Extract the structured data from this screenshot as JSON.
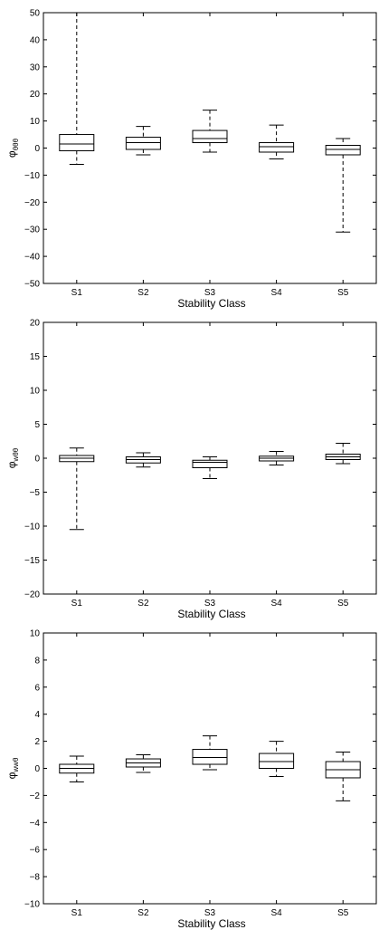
{
  "chart_data": [
    {
      "type": "boxplot",
      "xlabel": "Stability Class",
      "ylabel_base": "φ",
      "ylabel_sub": "θθθ",
      "ylim": [
        -50,
        50
      ],
      "yticks": [
        "-50",
        "-40",
        "-30",
        "-20",
        "-10",
        "0",
        "10",
        "20",
        "30",
        "40",
        "50"
      ],
      "categories": [
        "S1",
        "S2",
        "S3",
        "S4",
        "S5"
      ],
      "boxes": [
        {
          "whisker_low": -6,
          "q1": -1,
          "median": 1.5,
          "q3": 5,
          "whisker_high": 50
        },
        {
          "whisker_low": -2.5,
          "q1": -0.5,
          "median": 2,
          "q3": 4,
          "whisker_high": 8
        },
        {
          "whisker_low": -1.5,
          "q1": 2,
          "median": 3.5,
          "q3": 6.5,
          "whisker_high": 14
        },
        {
          "whisker_low": -4,
          "q1": -1.5,
          "median": 0.5,
          "q3": 2,
          "whisker_high": 8.5
        },
        {
          "whisker_low": -31,
          "q1": -2.5,
          "median": -0.5,
          "q3": 1,
          "whisker_high": 3.5
        }
      ]
    },
    {
      "type": "boxplot",
      "xlabel": "Stability Class",
      "ylabel_base": "φ",
      "ylabel_sub": "wθθ",
      "ylim": [
        -20,
        20
      ],
      "yticks": [
        "-20",
        "-15",
        "-10",
        "-5",
        "0",
        "5",
        "10",
        "15",
        "20"
      ],
      "categories": [
        "S1",
        "S2",
        "S3",
        "S4",
        "S5"
      ],
      "boxes": [
        {
          "whisker_low": -10.5,
          "q1": -0.5,
          "median": 0,
          "q3": 0.4,
          "whisker_high": 1.5
        },
        {
          "whisker_low": -1.3,
          "q1": -0.7,
          "median": -0.2,
          "q3": 0.2,
          "whisker_high": 0.8
        },
        {
          "whisker_low": -3,
          "q1": -1.4,
          "median": -0.6,
          "q3": -0.3,
          "whisker_high": 0.2
        },
        {
          "whisker_low": -1,
          "q1": -0.4,
          "median": 0,
          "q3": 0.3,
          "whisker_high": 1
        },
        {
          "whisker_low": -0.8,
          "q1": -0.2,
          "median": 0.2,
          "q3": 0.6,
          "whisker_high": 2.2
        }
      ]
    },
    {
      "type": "boxplot",
      "xlabel": "Stability Class",
      "ylabel_base": "φ",
      "ylabel_sub": "wwθ",
      "ylim": [
        -10,
        10
      ],
      "yticks": [
        "-10",
        "-8",
        "-6",
        "-4",
        "-2",
        "0",
        "2",
        "4",
        "6",
        "8",
        "10"
      ],
      "categories": [
        "S1",
        "S2",
        "S3",
        "S4",
        "S5"
      ],
      "boxes": [
        {
          "whisker_low": -1,
          "q1": -0.35,
          "median": 0,
          "q3": 0.3,
          "whisker_high": 0.9
        },
        {
          "whisker_low": -0.3,
          "q1": 0.1,
          "median": 0.4,
          "q3": 0.7,
          "whisker_high": 1
        },
        {
          "whisker_low": -0.1,
          "q1": 0.3,
          "median": 0.8,
          "q3": 1.4,
          "whisker_high": 2.4
        },
        {
          "whisker_low": -0.6,
          "q1": 0,
          "median": 0.5,
          "q3": 1.1,
          "whisker_high": 2
        },
        {
          "whisker_low": -2.4,
          "q1": -0.7,
          "median": -0.1,
          "q3": 0.5,
          "whisker_high": 1.2
        }
      ]
    }
  ]
}
